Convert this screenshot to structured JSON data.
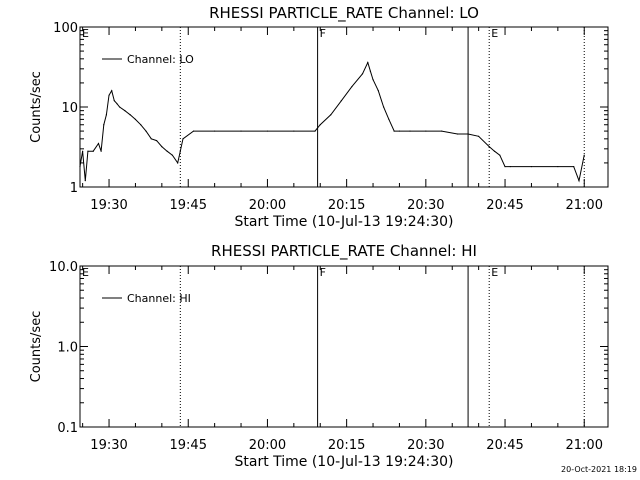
{
  "footer_timestamp": "20-Oct-2021 18:19",
  "chart_data": [
    {
      "type": "line",
      "title": "RHESSI PARTICLE_RATE Channel: LO",
      "xlabel": "Start Time (10-Jul-13 19:24:30)",
      "ylabel": "Counts/sec",
      "yscale": "log",
      "ylim": [
        1,
        100
      ],
      "xlim": [
        "19:24:30",
        "21:04:30"
      ],
      "x_tick_labels": [
        "19:30",
        "19:45",
        "20:00",
        "20:15",
        "20:30",
        "20:45",
        "21:00"
      ],
      "y_tick_labels": [
        "1",
        "10",
        "100"
      ],
      "legend": {
        "label": "Channel: LO",
        "position": "top-left"
      },
      "markers": [
        {
          "time": "19:24:30",
          "label": "E",
          "style": "none"
        },
        {
          "time": "19:43:30",
          "label": "",
          "style": "dotted"
        },
        {
          "time": "20:09:30",
          "label": "F",
          "style": "solid"
        },
        {
          "time": "20:38:00",
          "label": "",
          "style": "solid"
        },
        {
          "time": "20:42:00",
          "label": "E",
          "style": "dotted"
        },
        {
          "time": "21:00:00",
          "label": "",
          "style": "dotted"
        }
      ],
      "series": [
        {
          "name": "Channel: LO",
          "x": [
            "19:24:30",
            "19:25:00",
            "19:25:30",
            "19:26:00",
            "19:27:00",
            "19:28:00",
            "19:28:30",
            "19:29:00",
            "19:29:30",
            "19:30:00",
            "19:30:30",
            "19:31:00",
            "19:31:30",
            "19:32:00",
            "19:33:00",
            "19:34:00",
            "19:35:00",
            "19:36:00",
            "19:37:00",
            "19:38:00",
            "19:39:00",
            "19:40:00",
            "19:41:00",
            "19:42:00",
            "19:43:00",
            "19:43:30",
            "19:44:00",
            "19:46:00",
            "19:50:00",
            "19:55:00",
            "20:00:00",
            "20:05:00",
            "20:09:00",
            "20:10:00",
            "20:12:00",
            "20:14:00",
            "20:16:00",
            "20:18:00",
            "20:19:00",
            "20:19:30",
            "20:20:00",
            "20:21:00",
            "20:22:00",
            "20:23:00",
            "20:24:00",
            "20:25:00",
            "20:27:00",
            "20:30:00",
            "20:33:00",
            "20:36:00",
            "20:38:00",
            "20:40:00",
            "20:42:00",
            "20:43:00",
            "20:44:00",
            "20:45:00",
            "20:46:00",
            "20:50:00",
            "20:55:00",
            "20:58:00",
            "20:59:00",
            "21:00:00"
          ],
          "values": [
            1.8,
            2.8,
            1.2,
            2.8,
            2.8,
            3.5,
            2.8,
            6,
            8,
            14,
            16,
            12,
            11,
            10,
            9,
            8,
            7,
            6,
            5,
            4,
            3.8,
            3.2,
            2.8,
            2.5,
            2,
            2.8,
            4,
            5,
            5,
            5,
            5,
            5,
            5,
            6,
            8,
            12,
            18,
            26,
            36,
            28,
            22,
            16,
            10,
            7,
            5,
            5,
            5,
            5,
            5,
            4.6,
            4.6,
            4.3,
            3.2,
            2.8,
            2.5,
            1.8,
            1.8,
            1.8,
            1.8,
            1.8,
            1.2,
            2.5
          ]
        }
      ]
    },
    {
      "type": "line",
      "title": "RHESSI PARTICLE_RATE Channel: HI",
      "xlabel": "Start Time (10-Jul-13 19:24:30)",
      "ylabel": "Counts/sec",
      "yscale": "log",
      "ylim": [
        0.1,
        10
      ],
      "xlim": [
        "19:24:30",
        "21:04:30"
      ],
      "x_tick_labels": [
        "19:30",
        "19:45",
        "20:00",
        "20:15",
        "20:30",
        "20:45",
        "21:00"
      ],
      "y_tick_labels": [
        "0.1",
        "1.0",
        "10.0"
      ],
      "legend": {
        "label": "Channel: HI",
        "position": "top-left"
      },
      "markers": [
        {
          "time": "19:24:30",
          "label": "E",
          "style": "none"
        },
        {
          "time": "19:43:30",
          "label": "",
          "style": "dotted"
        },
        {
          "time": "20:09:30",
          "label": "F",
          "style": "solid"
        },
        {
          "time": "20:38:00",
          "label": "",
          "style": "solid"
        },
        {
          "time": "20:42:00",
          "label": "E",
          "style": "dotted"
        },
        {
          "time": "21:00:00",
          "label": "",
          "style": "dotted"
        }
      ],
      "series": []
    }
  ]
}
